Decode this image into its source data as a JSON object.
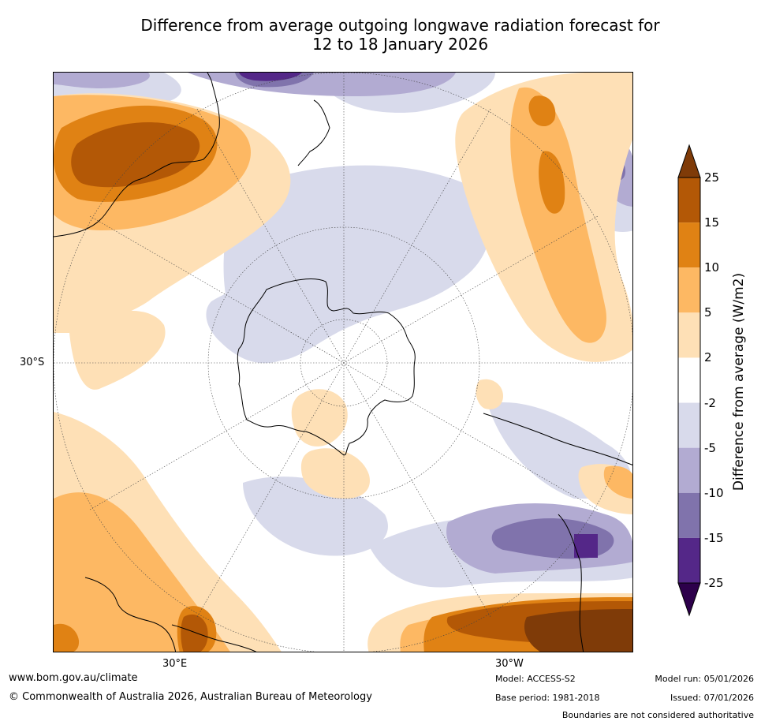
{
  "title": {
    "line1": "Difference from average outgoing longwave radiation forecast for",
    "line2": "12 to 18 January 2026"
  },
  "map": {
    "projection": "south-polar-stereographic",
    "lat_label": "30°S",
    "lon_labels": {
      "east": "30°E",
      "west": "30°W"
    }
  },
  "colorbar": {
    "title": "Difference from average (W/m2)",
    "ticks": [
      "25",
      "15",
      "10",
      "5",
      "2",
      "-2",
      "-5",
      "-10",
      "-15",
      "-25"
    ],
    "bins": [
      {
        "range": "15 to 25",
        "color": "#b35806"
      },
      {
        "range": "10 to 15",
        "color": "#e08214"
      },
      {
        "range": "5 to 10",
        "color": "#fdb863"
      },
      {
        "range": "2 to 5",
        "color": "#fee0b6"
      },
      {
        "range": "-2 to 2",
        "color": "#ffffff"
      },
      {
        "range": "-5 to -2",
        "color": "#d8daeb"
      },
      {
        "range": "-10 to -5",
        "color": "#b2abd2"
      },
      {
        "range": "-15 to -10",
        "color": "#8073ac"
      },
      {
        "range": "-25 to -15",
        "color": "#542788"
      }
    ],
    "over_color": "#7f3b08",
    "under_color": "#2d004b"
  },
  "footer": {
    "url": "www.bom.gov.au/climate",
    "copyright": "© Commonwealth of Australia 2026, Australian Bureau of Meteorology",
    "model": "Model: ACCESS-S2",
    "base_period": "Base period: 1981-2018",
    "model_run": "Model run: 05/01/2026",
    "issued": "Issued: 07/01/2026",
    "disclaimer": "Boundaries are not considered authoritative"
  }
}
